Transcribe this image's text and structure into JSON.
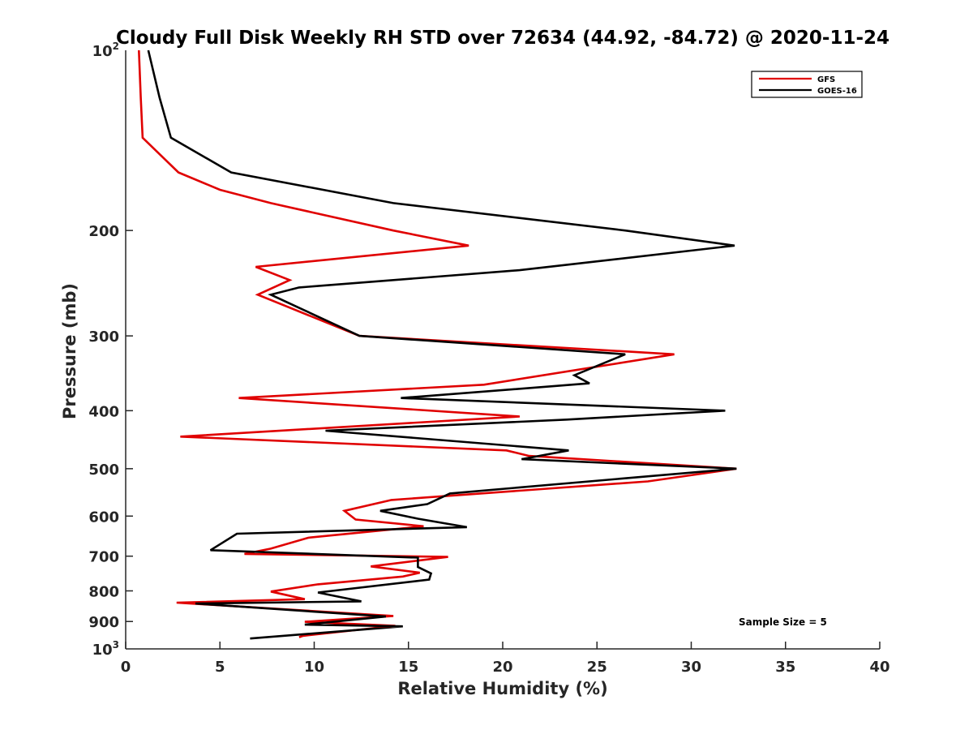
{
  "chart_data": {
    "type": "line",
    "title": "Cloudy Full Disk Weekly RH STD over 72634 (44.92, -84.72) @ 2020-11-24",
    "xlabel": "Relative Humidity (%)",
    "ylabel": "Pressure (mb)",
    "xlim": [
      0,
      40
    ],
    "ylim": [
      100,
      1000
    ],
    "y_scale": "log",
    "y_reversed": true,
    "x_ticks": [
      "0",
      "5",
      "10",
      "15",
      "20",
      "25",
      "30",
      "35",
      "40"
    ],
    "x_tick_values": [
      0,
      5,
      10,
      15,
      20,
      25,
      30,
      35,
      40
    ],
    "y_ticks": [
      {
        "value": 100,
        "base": "10",
        "exp": "2"
      },
      {
        "value": 200,
        "text": "200"
      },
      {
        "value": 300,
        "text": "300"
      },
      {
        "value": 400,
        "text": "400"
      },
      {
        "value": 500,
        "text": "500"
      },
      {
        "value": 600,
        "text": "600"
      },
      {
        "value": 700,
        "text": "700"
      },
      {
        "value": 800,
        "text": "800"
      },
      {
        "value": 900,
        "text": "900"
      },
      {
        "value": 1000,
        "base": "10",
        "exp": "3"
      }
    ],
    "grid": false,
    "legend_position": "top-right",
    "annotation": "Sample Size = 5",
    "series": [
      {
        "name": "GFS",
        "color": "#e00000",
        "points": [
          [
            0.7,
            100
          ],
          [
            0.8,
            120
          ],
          [
            0.9,
            140
          ],
          [
            2.8,
            160
          ],
          [
            5.0,
            171
          ],
          [
            7.7,
            180
          ],
          [
            14.2,
            200
          ],
          [
            18.2,
            212
          ],
          [
            6.9,
            230
          ],
          [
            8.7,
            242
          ],
          [
            7.0,
            256
          ],
          [
            12.4,
            300
          ],
          [
            29.1,
            322
          ],
          [
            19.0,
            362
          ],
          [
            6.0,
            381
          ],
          [
            20.9,
            409
          ],
          [
            2.9,
            442
          ],
          [
            20.2,
            466
          ],
          [
            21.4,
            476
          ],
          [
            32.4,
            500
          ],
          [
            27.7,
            525
          ],
          [
            14.1,
            564
          ],
          [
            11.6,
            588
          ],
          [
            12.2,
            608
          ],
          [
            15.8,
            624
          ],
          [
            9.7,
            652
          ],
          [
            7.7,
            680
          ],
          [
            6.3,
            694
          ],
          [
            17.1,
            702
          ],
          [
            13.0,
            728
          ],
          [
            15.6,
            746
          ],
          [
            14.7,
            757
          ],
          [
            10.2,
            780
          ],
          [
            7.7,
            802
          ],
          [
            9.5,
            826
          ],
          [
            2.7,
            837
          ],
          [
            14.2,
            881
          ],
          [
            9.5,
            901
          ],
          [
            14.3,
            915
          ],
          [
            9.4,
            951
          ],
          [
            9.2,
            956
          ]
        ]
      },
      {
        "name": "GOES-16",
        "color": "#000000",
        "points": [
          [
            1.2,
            100
          ],
          [
            1.8,
            120
          ],
          [
            2.4,
            140
          ],
          [
            5.6,
            160
          ],
          [
            14.2,
            180
          ],
          [
            26.5,
            200
          ],
          [
            32.3,
            212
          ],
          [
            20.9,
            233
          ],
          [
            9.2,
            249
          ],
          [
            7.7,
            256
          ],
          [
            12.4,
            300
          ],
          [
            26.5,
            322
          ],
          [
            23.8,
            349
          ],
          [
            24.6,
            360
          ],
          [
            14.6,
            381
          ],
          [
            31.8,
            400
          ],
          [
            23.4,
            414
          ],
          [
            10.6,
            432
          ],
          [
            23.5,
            466
          ],
          [
            21.0,
            482
          ],
          [
            32.4,
            500
          ],
          [
            17.2,
            550
          ],
          [
            16.0,
            573
          ],
          [
            13.5,
            588
          ],
          [
            15.5,
            606
          ],
          [
            18.1,
            626
          ],
          [
            5.9,
            642
          ],
          [
            4.5,
            684
          ],
          [
            15.5,
            704
          ],
          [
            15.5,
            730
          ],
          [
            16.2,
            748
          ],
          [
            16.1,
            766
          ],
          [
            10.2,
            805
          ],
          [
            12.5,
            833
          ],
          [
            3.7,
            840
          ],
          [
            13.8,
            883
          ],
          [
            9.5,
            911
          ],
          [
            14.7,
            917
          ],
          [
            6.6,
            961
          ]
        ]
      }
    ]
  }
}
